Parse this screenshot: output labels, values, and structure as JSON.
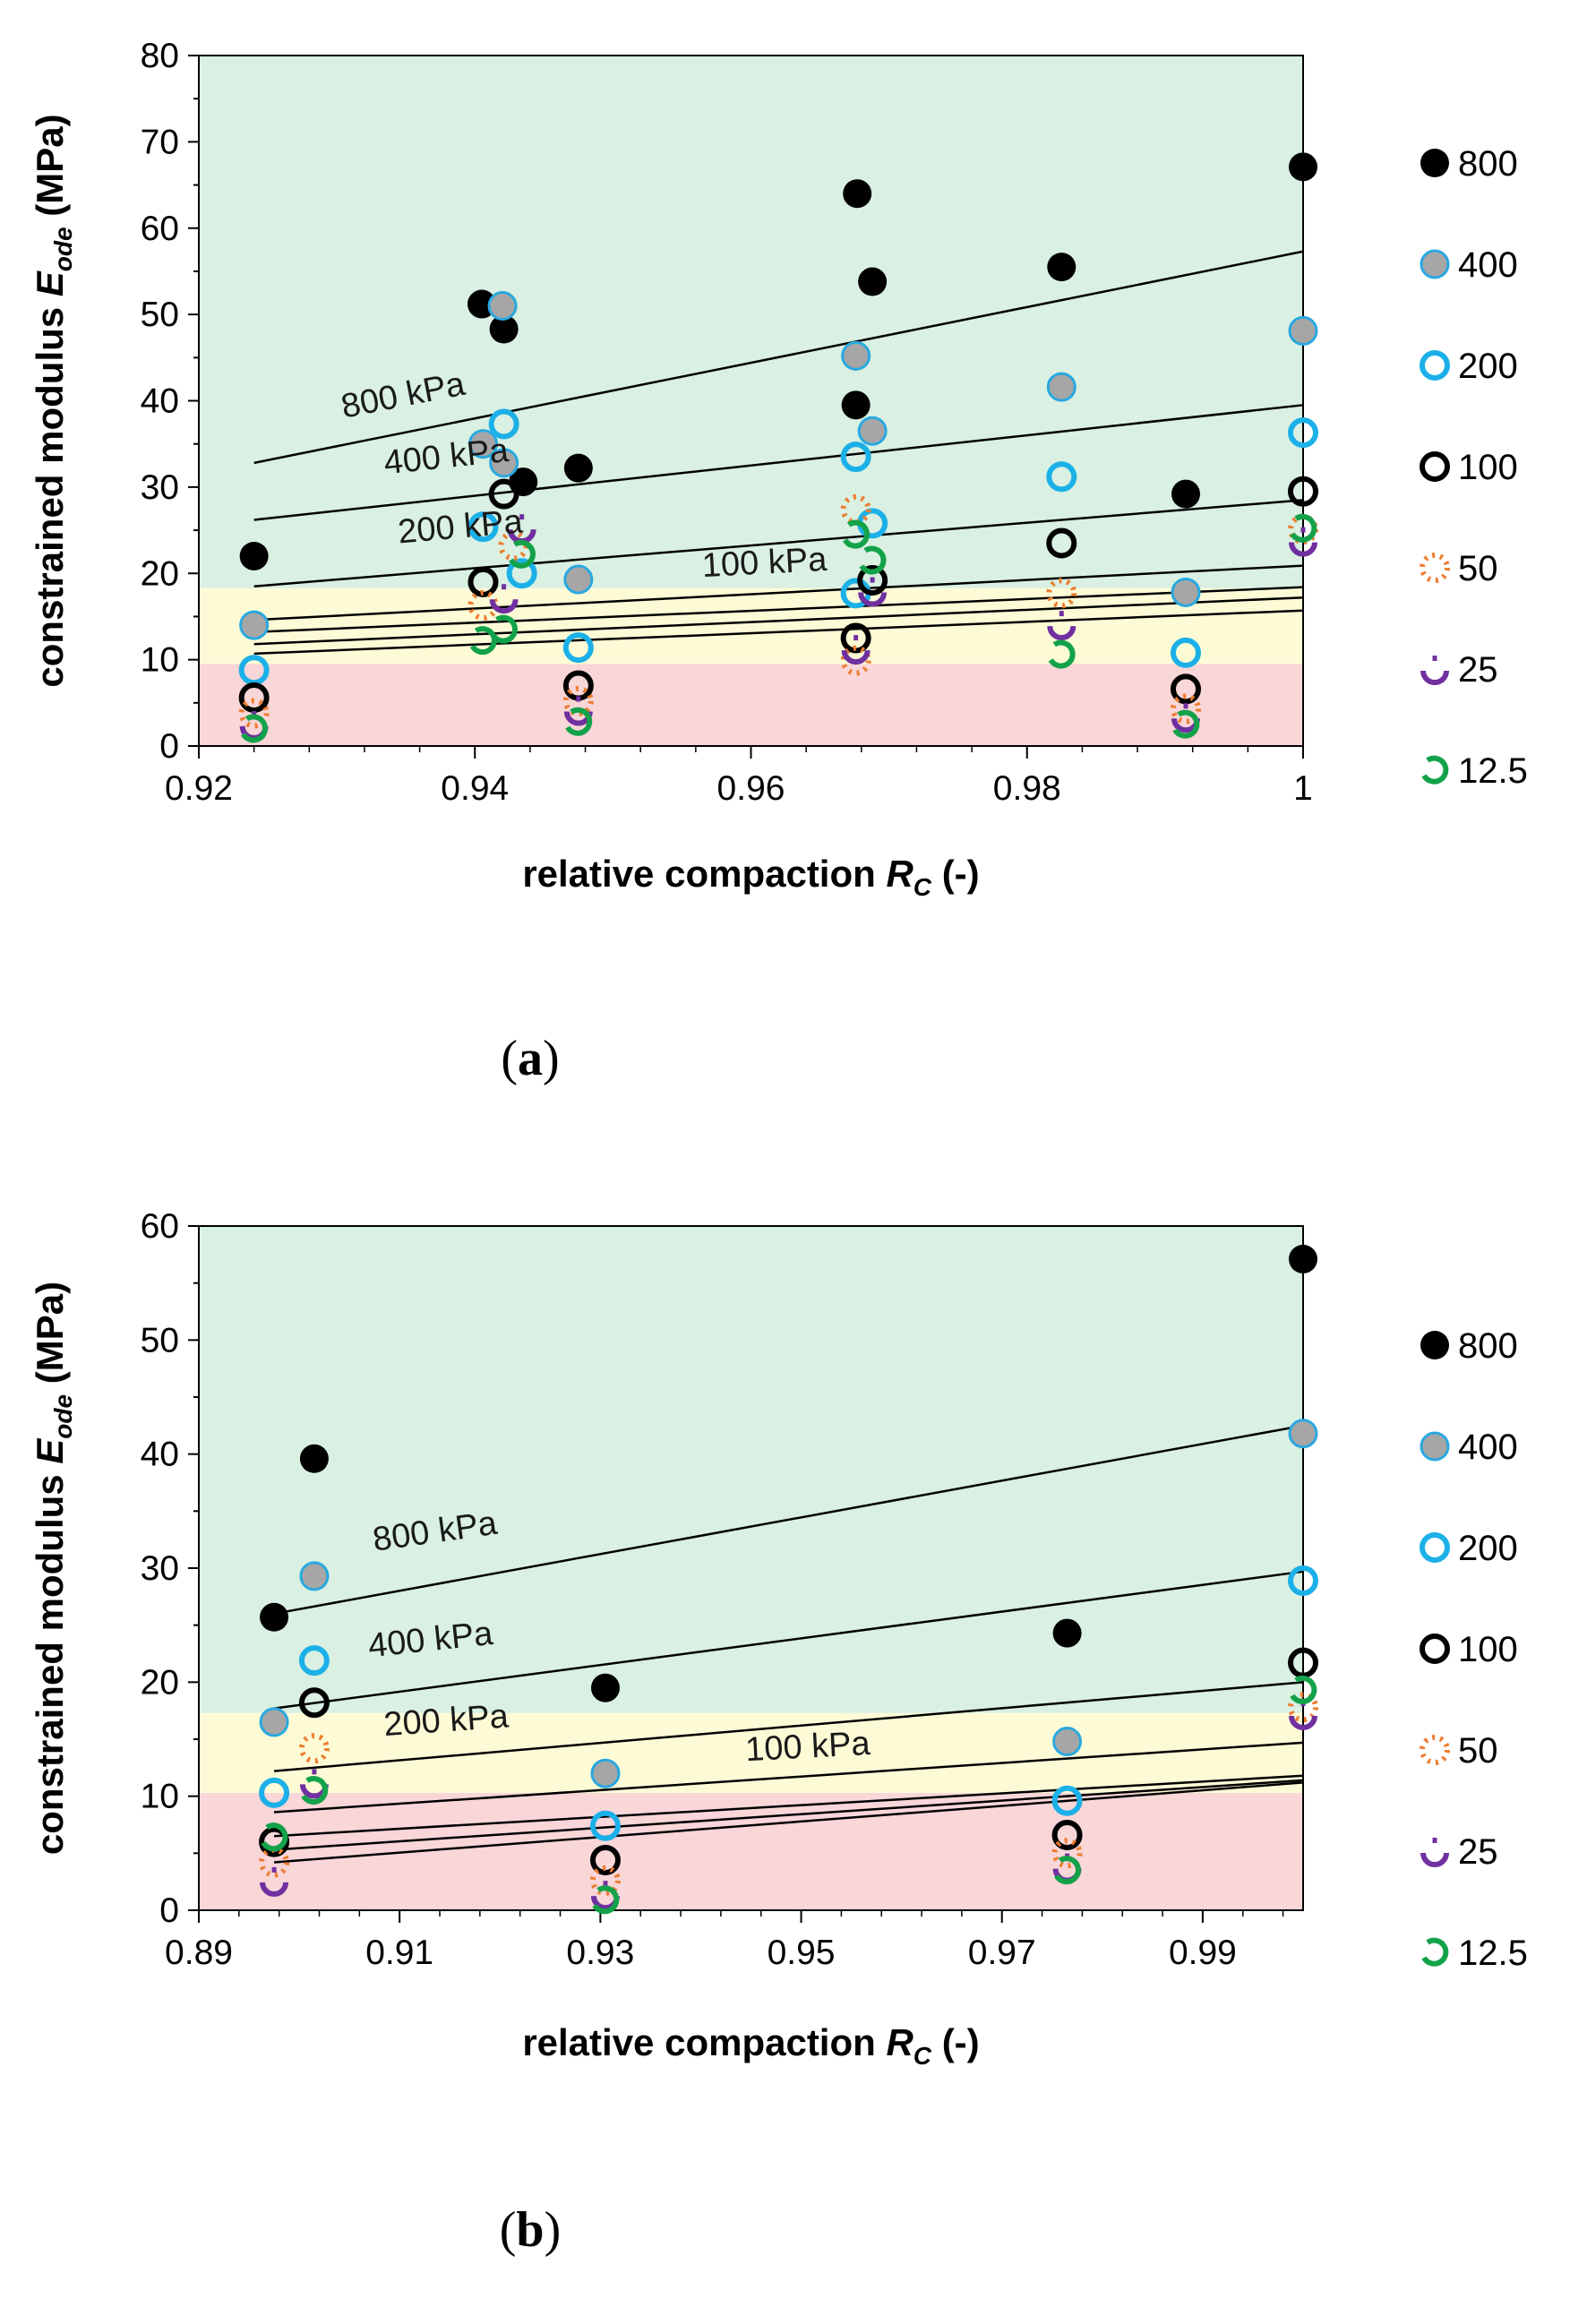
{
  "chart_data": [
    {
      "id": "a",
      "type": "scatter",
      "caption": "(a)",
      "caption_letter": "a",
      "xlabel": "relative compaction",
      "xlabel_symbol": "R",
      "xlabel_sub": "C",
      "xlabel_unit": "(-)",
      "ylabel": "constrained modulus",
      "ylabel_symbol": "E",
      "ylabel_sub": "ode",
      "ylabel_unit": "(MPa)",
      "xlim": [
        0.92,
        1.0
      ],
      "ylim": [
        0,
        80
      ],
      "xticks": [
        0.92,
        0.94,
        0.96,
        0.98,
        1.0
      ],
      "xtick_labels": [
        "0.92",
        "0.94",
        "0.96",
        "0.98",
        "1"
      ],
      "yticks": [
        0,
        10,
        20,
        30,
        40,
        50,
        60,
        70,
        80
      ],
      "yticks_labels": [
        "0",
        "10",
        "20",
        "30",
        "40",
        "50",
        "60",
        "70",
        "80"
      ],
      "bands": [
        {
          "from": 0,
          "to": 9.5,
          "color": "#f9d6d8"
        },
        {
          "from": 9.5,
          "to": 18.3,
          "color": "#fdfbd6"
        },
        {
          "from": 18.3,
          "to": 80,
          "color": "#d9f0e2"
        }
      ],
      "series": [
        {
          "name": "800",
          "style": "filled",
          "values": [
            [
              0.924,
              22
            ],
            [
              0.9405,
              51.2
            ],
            [
              0.9421,
              48.3
            ],
            [
              0.9435,
              30.6
            ],
            [
              0.9475,
              32.2
            ],
            [
              0.9677,
              64
            ],
            [
              0.9688,
              53.8
            ],
            [
              0.9676,
              39.5
            ],
            [
              0.9825,
              55.5
            ],
            [
              0.9915,
              29.2
            ],
            [
              1.0,
              67.1
            ]
          ]
        },
        {
          "name": "400",
          "style": "grey",
          "values": [
            [
              0.924,
              14
            ],
            [
              0.9406,
              35
            ],
            [
              0.942,
              51
            ],
            [
              0.9421,
              32.8
            ],
            [
              0.9475,
              19.3
            ],
            [
              0.9676,
              45.2
            ],
            [
              0.9688,
              36.5
            ],
            [
              0.9825,
              41.6
            ],
            [
              0.9915,
              17.8
            ],
            [
              1.0,
              48.1
            ]
          ]
        },
        {
          "name": "200",
          "style": "ring-blue",
          "values": [
            [
              0.924,
              8.8
            ],
            [
              0.9406,
              25.4
            ],
            [
              0.9421,
              37.3
            ],
            [
              0.9434,
              20
            ],
            [
              0.9475,
              11.4
            ],
            [
              0.9676,
              33.5
            ],
            [
              0.9688,
              25.8
            ],
            [
              0.9676,
              17.7
            ],
            [
              0.9825,
              31.2
            ],
            [
              0.9915,
              10.8
            ],
            [
              1.0,
              36.3
            ]
          ]
        },
        {
          "name": "100",
          "style": "ring-black",
          "values": [
            [
              0.924,
              5.6
            ],
            [
              0.9406,
              19
            ],
            [
              0.9421,
              29.2
            ],
            [
              0.9475,
              7
            ],
            [
              0.9676,
              12.5
            ],
            [
              0.9688,
              19.2
            ],
            [
              0.9825,
              23.5
            ],
            [
              0.9915,
              6.6
            ],
            [
              1.0,
              29.5
            ]
          ]
        },
        {
          "name": "50",
          "style": "dotted-orange",
          "values": [
            [
              0.924,
              3.8
            ],
            [
              0.9406,
              16.3
            ],
            [
              0.9428,
              23.2
            ],
            [
              0.9475,
              5.2
            ],
            [
              0.9676,
              27.4
            ],
            [
              0.9676,
              9.9
            ],
            [
              0.9825,
              17.7
            ],
            [
              0.9915,
              4.3
            ],
            [
              1.0,
              25.1
            ]
          ]
        },
        {
          "name": "25",
          "style": "dash-purple",
          "values": [
            [
              0.924,
              2.5
            ],
            [
              0.9421,
              17.2
            ],
            [
              0.9434,
              25.3
            ],
            [
              0.9475,
              4.2
            ],
            [
              0.9676,
              11.3
            ],
            [
              0.9688,
              18
            ],
            [
              0.9825,
              14.1
            ],
            [
              0.9915,
              3.4
            ],
            [
              1.0,
              23.8
            ]
          ]
        },
        {
          "name": "12.5",
          "style": "open-green",
          "values": [
            [
              0.924,
              2
            ],
            [
              0.9406,
              12.2
            ],
            [
              0.9421,
              13.5
            ],
            [
              0.9434,
              22.2
            ],
            [
              0.9475,
              2.8
            ],
            [
              0.9676,
              24.5
            ],
            [
              0.9688,
              21.5
            ],
            [
              0.9825,
              10.6
            ],
            [
              0.9915,
              2.5
            ],
            [
              1.0,
              25.2
            ]
          ]
        }
      ],
      "trendlines": [
        {
          "x": [
            0.924,
            1.0
          ],
          "y": [
            32.8,
            57.3
          ]
        },
        {
          "x": [
            0.924,
            1.0
          ],
          "y": [
            26.2,
            39.5
          ]
        },
        {
          "x": [
            0.924,
            1.0
          ],
          "y": [
            18.5,
            28.5
          ]
        },
        {
          "x": [
            0.924,
            1.0
          ],
          "y": [
            14.6,
            20.9
          ]
        },
        {
          "x": [
            0.924,
            1.0
          ],
          "y": [
            13.2,
            18.4
          ]
        },
        {
          "x": [
            0.924,
            1.0
          ],
          "y": [
            11.8,
            17.2
          ]
        },
        {
          "x": [
            0.924,
            1.0
          ],
          "y": [
            10.7,
            15.7
          ]
        }
      ],
      "annotations": [
        {
          "text": "800 kPa",
          "x": 0.9305,
          "y": 38,
          "angle": -11
        },
        {
          "text": "400 kPa",
          "x": 0.9335,
          "y": 31.5,
          "angle": -6
        },
        {
          "text": "200 kPa",
          "x": 0.9345,
          "y": 23.5,
          "angle": -5
        },
        {
          "text": "100 kPa",
          "x": 0.9565,
          "y": 19.6,
          "angle": -3
        }
      ]
    },
    {
      "id": "b",
      "type": "scatter",
      "caption": "(b)",
      "caption_letter": "b",
      "xlabel": "relative compaction",
      "xlabel_symbol": "R",
      "xlabel_sub": "C",
      "xlabel_unit": "(-)",
      "ylabel": "constrained modulus",
      "ylabel_symbol": "E",
      "ylabel_sub": "ode",
      "ylabel_unit": "(MPa)",
      "xlim": [
        0.89,
        1.0
      ],
      "ylim": [
        0,
        60
      ],
      "xticks": [
        0.89,
        0.91,
        0.93,
        0.95,
        0.97,
        0.99
      ],
      "xtick_labels": [
        "0.89",
        "0.91",
        "0.93",
        "0.95",
        "0.97",
        "0.99"
      ],
      "yticks": [
        0,
        10,
        20,
        30,
        40,
        50,
        60
      ],
      "yticks_labels": [
        "0",
        "10",
        "20",
        "30",
        "40",
        "50",
        "60"
      ],
      "bands": [
        {
          "from": 0,
          "to": 10.3,
          "color": "#f9d6d8"
        },
        {
          "from": 10.3,
          "to": 17.3,
          "color": "#fdfbd6"
        },
        {
          "from": 17.3,
          "to": 60,
          "color": "#d9f0e2"
        }
      ],
      "series": [
        {
          "name": "800",
          "style": "filled",
          "values": [
            [
              0.8975,
              25.7
            ],
            [
              0.9015,
              39.6
            ],
            [
              0.9305,
              19.5
            ],
            [
              0.9765,
              24.3
            ],
            [
              1.0,
              57.1
            ]
          ]
        },
        {
          "name": "400",
          "style": "grey",
          "values": [
            [
              0.8975,
              16.5
            ],
            [
              0.9015,
              29.3
            ],
            [
              0.9305,
              12
            ],
            [
              0.9765,
              14.8
            ],
            [
              1.0,
              41.8
            ]
          ]
        },
        {
          "name": "200",
          "style": "ring-blue",
          "values": [
            [
              0.8975,
              10.3
            ],
            [
              0.9015,
              21.9
            ],
            [
              0.9305,
              7.4
            ],
            [
              0.9765,
              9.6
            ],
            [
              1.0,
              28.9
            ]
          ]
        },
        {
          "name": "100",
          "style": "ring-black",
          "values": [
            [
              0.8975,
              6
            ],
            [
              0.9015,
              18.2
            ],
            [
              0.9305,
              4.4
            ],
            [
              0.9765,
              6.6
            ],
            [
              1.0,
              21.7
            ]
          ]
        },
        {
          "name": "50",
          "style": "dotted-orange",
          "values": [
            [
              0.8975,
              4.2
            ],
            [
              0.9015,
              14.2
            ],
            [
              0.9305,
              2.6
            ],
            [
              0.9765,
              5
            ],
            [
              1.0,
              17.8
            ]
          ]
        },
        {
          "name": "25",
          "style": "dash-purple",
          "values": [
            [
              0.8975,
              2.6
            ],
            [
              0.9015,
              11.2
            ],
            [
              0.9305,
              1.4
            ],
            [
              0.9765,
              3.8
            ],
            [
              1.0,
              17.2
            ]
          ]
        },
        {
          "name": "12.5",
          "style": "open-green",
          "values": [
            [
              0.8975,
              6.4
            ],
            [
              0.9015,
              10.5
            ],
            [
              0.9305,
              0.9
            ],
            [
              0.9765,
              3.5
            ],
            [
              1.0,
              19.3
            ]
          ]
        }
      ],
      "trendlines": [
        {
          "x": [
            0.8975,
            1.0
          ],
          "y": [
            26,
            42.5
          ]
        },
        {
          "x": [
            0.8975,
            1.0
          ],
          "y": [
            17.7,
            29.7
          ]
        },
        {
          "x": [
            0.8975,
            1.0
          ],
          "y": [
            12.2,
            20
          ]
        },
        {
          "x": [
            0.8975,
            1.0
          ],
          "y": [
            8.6,
            14.7
          ]
        },
        {
          "x": [
            0.8975,
            1.0
          ],
          "y": [
            6.5,
            11.8
          ]
        },
        {
          "x": [
            0.8975,
            1.0
          ],
          "y": [
            5.3,
            11.4
          ]
        },
        {
          "x": [
            0.8975,
            1.0
          ],
          "y": [
            4.2,
            11.2
          ]
        }
      ],
      "annotations": [
        {
          "text": "800 kPa",
          "x": 0.9075,
          "y": 31.5,
          "angle": -8
        },
        {
          "text": "400 kPa",
          "x": 0.907,
          "y": 22.2,
          "angle": -6
        },
        {
          "text": "200 kPa",
          "x": 0.9085,
          "y": 15.3,
          "angle": -4
        },
        {
          "text": "100 kPa",
          "x": 0.9445,
          "y": 13.1,
          "angle": -3
        }
      ]
    }
  ],
  "legend": {
    "placement": "right",
    "entries": [
      {
        "label": "800",
        "style": "filled"
      },
      {
        "label": "400",
        "style": "grey"
      },
      {
        "label": "200",
        "style": "ring-blue"
      },
      {
        "label": "100",
        "style": "ring-black"
      },
      {
        "label": "50",
        "style": "dotted-orange"
      },
      {
        "label": "25",
        "style": "dash-purple"
      },
      {
        "label": "12.5",
        "style": "open-green"
      }
    ]
  },
  "colors": {
    "filled": "#000000",
    "grey_fill": "#a6a6a6",
    "grey_edge": "#29a8e0",
    "blue": "#1cb0e8",
    "black_ring": "#000000",
    "orange": "#ed7d31",
    "purple": "#7030a0",
    "green": "#13a24a",
    "trend": "#000000"
  }
}
